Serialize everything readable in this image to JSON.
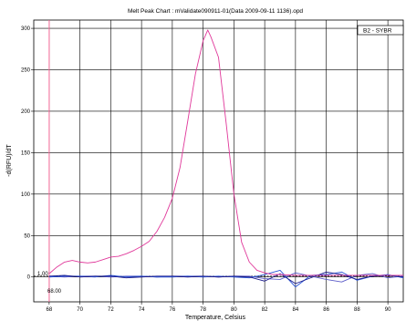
{
  "chart_data": {
    "type": "line",
    "title": "Melt Peak Chart : mValidate090911-01(Data 2009-09-11 1136).opd",
    "xlabel": "Temperature, Celsius",
    "ylabel": "-d(RFU)/dT",
    "xlim": [
      67,
      91
    ],
    "ylim": [
      -30,
      310
    ],
    "x_ticks": [
      68,
      70,
      72,
      74,
      76,
      78,
      80,
      82,
      84,
      86,
      88,
      90
    ],
    "y_ticks": [
      0,
      50,
      100,
      150,
      200,
      250,
      300
    ],
    "grid": true,
    "legend": {
      "position": "top-right",
      "entries": [
        "B2 - SYBR"
      ]
    },
    "threshold": {
      "y": 1.0,
      "label": "1.00"
    },
    "marker_line": {
      "x": 68.0,
      "label": "68.00",
      "color": "#ff6699"
    },
    "series": [
      {
        "name": "B2 - SYBR",
        "color": "#e0389a",
        "x": [
          68,
          68.5,
          69,
          69.5,
          70,
          70.5,
          71,
          71.5,
          72,
          72.5,
          73,
          73.5,
          74,
          74.5,
          75,
          75.5,
          76,
          76.5,
          77,
          77.5,
          78,
          78.3,
          78.5,
          79,
          79.5,
          80,
          80.5,
          81,
          81.5,
          82,
          82.5,
          83,
          84,
          85,
          86,
          87,
          88,
          89,
          90,
          91
        ],
        "y": [
          4,
          12,
          18,
          20,
          18,
          17,
          18,
          21,
          24,
          25,
          28,
          32,
          37,
          43,
          55,
          72,
          95,
          132,
          188,
          245,
          285,
          298,
          290,
          265,
          185,
          100,
          42,
          18,
          8,
          5,
          3,
          3,
          2,
          2,
          2,
          2,
          2,
          2,
          2,
          2
        ]
      },
      {
        "color": "#1a1a8c",
        "x": [
          68,
          69,
          70,
          71,
          72,
          73,
          74,
          75,
          76,
          77,
          78,
          79,
          80,
          81,
          82,
          83,
          84,
          85,
          86,
          87,
          88,
          89,
          90,
          91
        ],
        "y": [
          1,
          2,
          0,
          1,
          1,
          -1,
          0,
          1,
          1,
          0,
          1,
          0,
          1,
          0,
          -5,
          4,
          -8,
          -1,
          6,
          3,
          -3,
          1,
          2,
          0
        ]
      },
      {
        "color": "#2a55d6",
        "x": [
          68,
          69,
          70,
          71,
          72,
          73,
          74,
          75,
          76,
          77,
          78,
          79,
          80,
          81,
          82,
          83,
          84,
          85,
          86,
          87,
          88,
          89,
          90,
          91
        ],
        "y": [
          0,
          1,
          1,
          0,
          2,
          0,
          1,
          0,
          0,
          1,
          0,
          1,
          0,
          -1,
          3,
          8,
          -12,
          2,
          3,
          6,
          -4,
          1,
          3,
          -1
        ]
      },
      {
        "color": "#5c5cc8",
        "x": [
          68,
          69,
          70,
          71,
          72,
          73,
          74,
          75,
          76,
          77,
          78,
          79,
          80,
          81,
          82,
          83,
          84,
          85,
          86,
          87,
          88,
          89,
          90,
          91
        ],
        "y": [
          1,
          0,
          1,
          1,
          0,
          1,
          1,
          0,
          1,
          1,
          1,
          0,
          1,
          1,
          -2,
          -3,
          5,
          1,
          -3,
          -6,
          2,
          4,
          -1,
          1
        ]
      }
    ]
  }
}
